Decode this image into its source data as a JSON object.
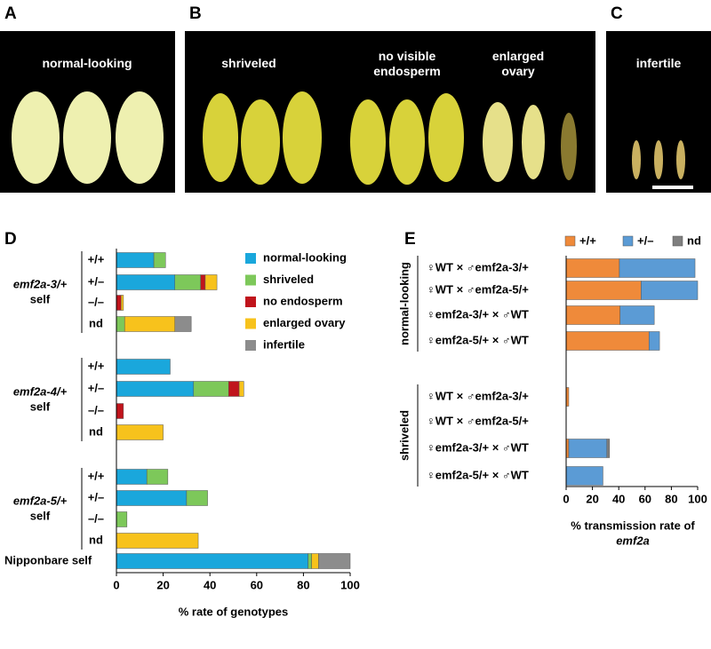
{
  "panels": [
    {
      "letter": "A",
      "labels": [
        "normal-looking"
      ]
    },
    {
      "letter": "B",
      "labels": [
        "shriveled",
        "no visible\nendosperm",
        "enlarged\novary"
      ]
    },
    {
      "letter": "C",
      "labels": [
        "infertile"
      ]
    }
  ],
  "chart_data": [
    {
      "type": "stacked-barh",
      "letter": "D",
      "xlabel": "% rate of genotypes",
      "groups": [
        {
          "label": "emf2a-3/+",
          "sub": "self"
        },
        {
          "label": "emf2a-4/+",
          "sub": "self"
        },
        {
          "label": "emf2a-5/+",
          "sub": "self"
        }
      ],
      "categories": [
        "+/+",
        "+/–",
        "–/–",
        "nd",
        "+/+",
        "+/–",
        "–/–",
        "nd",
        "+/+",
        "+/–",
        "–/–",
        "nd",
        "Nipponbare self"
      ],
      "series": [
        {
          "name": "normal-looking",
          "color": "#1aa7dc",
          "values": [
            16,
            25,
            0,
            0,
            23,
            33,
            0,
            0,
            13,
            30,
            0,
            0,
            82
          ]
        },
        {
          "name": "shriveled",
          "color": "#7dc85a",
          "values": [
            5,
            11,
            0,
            3.5,
            0,
            15,
            0,
            0,
            9,
            9,
            4.5,
            0,
            1.5
          ]
        },
        {
          "name": "no endosperm",
          "color": "#c0141c",
          "values": [
            0,
            2,
            2,
            0,
            0,
            4.5,
            3,
            0,
            0,
            0,
            0,
            0,
            0
          ]
        },
        {
          "name": "enlarged ovary",
          "color": "#f7c21c",
          "values": [
            0,
            5,
            1,
            21.5,
            0,
            2,
            0,
            20,
            0,
            0,
            0,
            35,
            3
          ]
        },
        {
          "name": "infertile",
          "color": "#8c8c8c",
          "values": [
            0,
            0,
            0,
            7,
            0,
            0,
            0,
            0,
            0,
            0,
            0,
            0,
            13.5
          ]
        }
      ],
      "xlim": [
        0,
        100
      ],
      "xticks": [
        0,
        20,
        40,
        60,
        80,
        100
      ]
    },
    {
      "type": "stacked-barh",
      "letter": "E",
      "xlabel": [
        "% transmission rate of",
        "emf2a"
      ],
      "groups": [
        {
          "label": "normal-looking"
        },
        {
          "label": "shriveled"
        }
      ],
      "categories": [
        "♀WT × ♂emf2a-3/+",
        "♀WT × ♂emf2a-5/+",
        "♀emf2a-3/+ × ♂WT",
        "♀emf2a-5/+ × ♂WT",
        "♀WT × ♂emf2a-3/+",
        "♀WT × ♂emf2a-5/+",
        "♀emf2a-3/+ × ♂WT",
        "♀emf2a-5/+ × ♂WT"
      ],
      "series": [
        {
          "name": "+/+",
          "color": "#ef8a3a",
          "values": [
            40.5,
            57,
            41,
            63,
            2,
            0,
            2,
            0
          ]
        },
        {
          "name": "+/–",
          "color": "#5b9bd5",
          "values": [
            57.5,
            43,
            26,
            8,
            0,
            0,
            29,
            28
          ]
        },
        {
          "name": "nd",
          "color": "#7f7f7f",
          "values": [
            0,
            0,
            0,
            0,
            0,
            0,
            2,
            0
          ]
        }
      ],
      "xlim": [
        0,
        100
      ],
      "xticks": [
        0,
        20,
        40,
        60,
        80,
        100
      ]
    }
  ]
}
